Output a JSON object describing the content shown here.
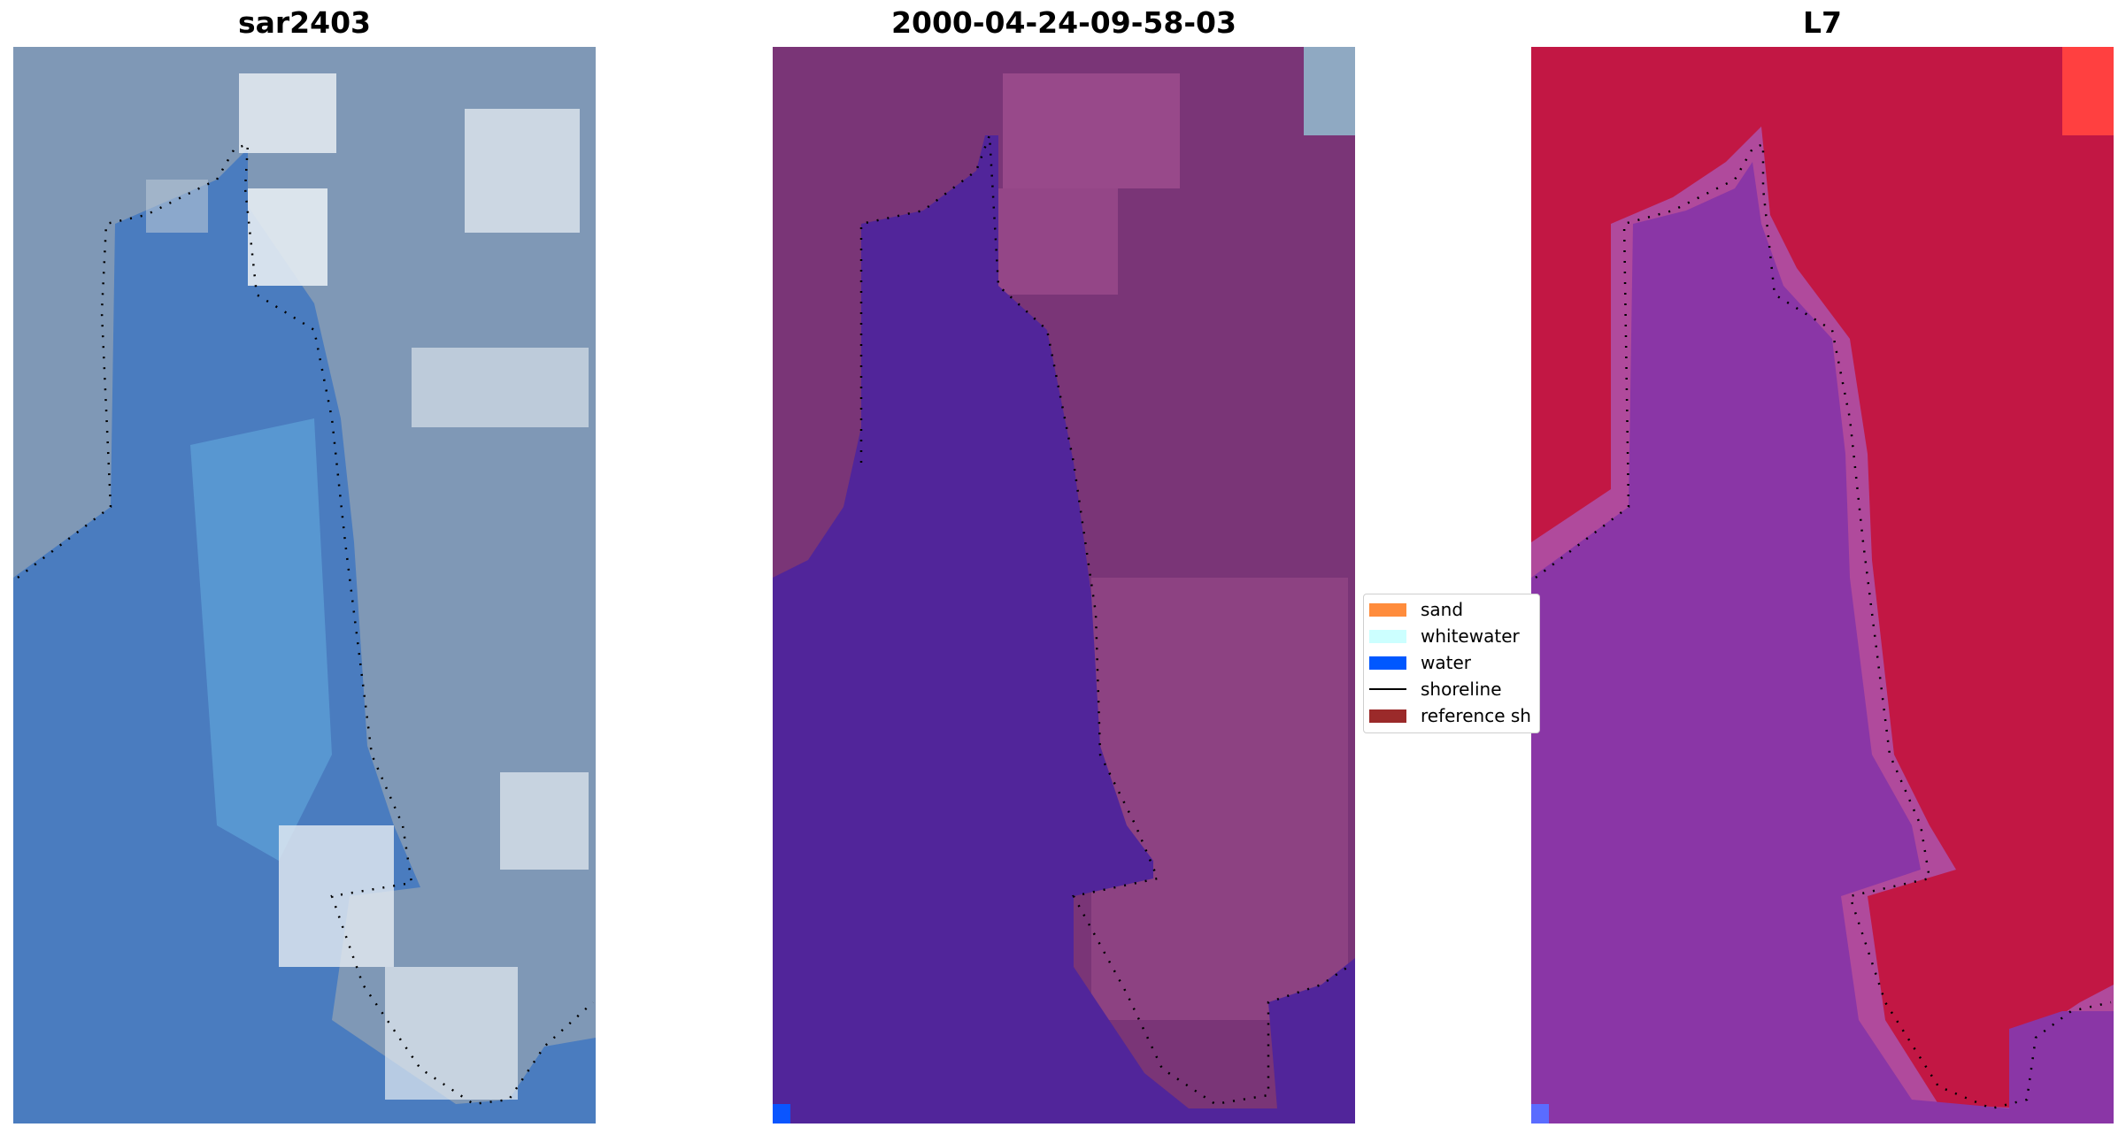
{
  "panels": [
    {
      "title": "sar2403",
      "image": "rgb-satellite-image"
    },
    {
      "title": "2000-04-24-09-58-03",
      "image": "classified-image"
    },
    {
      "title": "L7",
      "image": "mndwi-image"
    }
  ],
  "legend": {
    "items": [
      {
        "label": "sand",
        "color": "#ff8c3c",
        "kind": "patch"
      },
      {
        "label": "whitewater",
        "color": "#ccffff",
        "kind": "patch"
      },
      {
        "label": "water",
        "color": "#0058ff",
        "kind": "patch"
      },
      {
        "label": "shoreline",
        "color": "#000000",
        "kind": "line"
      },
      {
        "label": "reference sh",
        "color": "#9b2a2a",
        "kind": "patch"
      }
    ]
  },
  "colors": {
    "rgb_water": "#4a7cbf",
    "rgb_water_light": "#5ea2d8",
    "rgb_land": "#7f98b6",
    "rgb_cloud": "#e6ecf2",
    "class_water": "#51259a",
    "class_land": "#7a3577",
    "class_land_light": "#a04f8e",
    "class_corner": "#8fa9c2",
    "mndwi_land": "#c21744",
    "mndwi_water": "#8a36a6",
    "mndwi_edge": "#b04a9c",
    "mndwi_corner": "#ff4040",
    "water_pixel": "#0a55ff",
    "mndwi_water_pixel": "#5a6cff"
  }
}
